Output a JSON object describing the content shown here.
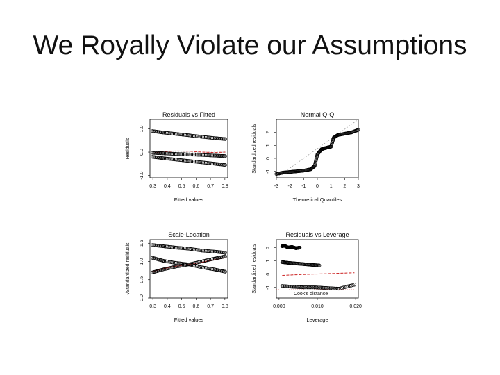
{
  "slide": {
    "title": "We Royally Violate our Assumptions"
  },
  "chart_data": [
    {
      "type": "scatter",
      "title": "Residuals vs Fitted",
      "xlabel": "Fitted values",
      "ylabel": "Residuals",
      "xlim": [
        0.2,
        0.8
      ],
      "ylim": [
        -1.1,
        1.4
      ],
      "xticks": [
        "0.3",
        "0.4",
        "0.5",
        "0.6",
        "0.7",
        "0.8"
      ],
      "yticks": [
        "-1.0",
        "0.0",
        "1.0"
      ],
      "series": [
        {
          "x": [
            0.22,
            0.3,
            0.4,
            0.5,
            0.6,
            0.7,
            0.78
          ],
          "y": [
            0.9,
            0.84,
            0.78,
            0.72,
            0.66,
            0.6,
            0.56
          ]
        },
        {
          "x": [
            0.22,
            0.3,
            0.4,
            0.5,
            0.6,
            0.7,
            0.78
          ],
          "y": [
            -0.2,
            -0.26,
            -0.32,
            -0.38,
            -0.44,
            -0.5,
            -0.55
          ]
        },
        {
          "x": [
            0.22,
            0.3,
            0.4,
            0.5,
            0.6,
            0.7,
            0.78
          ],
          "y": [
            -0.03,
            -0.05,
            -0.08,
            -0.1,
            -0.12,
            -0.15,
            -0.17
          ]
        }
      ],
      "smooth": {
        "x": [
          0.22,
          0.3,
          0.4,
          0.5,
          0.6,
          0.7,
          0.78
        ],
        "y": [
          -0.05,
          0.02,
          0.05,
          0.04,
          0.0,
          -0.02,
          0.0
        ]
      },
      "reference_line": 0,
      "colors": {
        "points": "#000000",
        "smooth": "#cc2222",
        "reference": "#999999"
      }
    },
    {
      "type": "scatter",
      "title": "Normal Q-Q",
      "xlabel": "Theoretical Quantiles",
      "ylabel": "Standardized residuals",
      "xlim": [
        -3,
        3
      ],
      "ylim": [
        -1.5,
        3
      ],
      "xticks": [
        "-3",
        "-2",
        "-1",
        "0",
        "1",
        "2",
        "3"
      ],
      "yticks": [
        "-1",
        "0",
        "1",
        "2"
      ],
      "series": [
        {
          "x": [
            -3,
            -2.5,
            -2,
            -1.5,
            -1,
            -0.5,
            -0.2,
            0,
            0.3,
            0.6,
            1,
            1.2,
            1.5,
            2,
            2.5,
            3
          ],
          "y": [
            -1.2,
            -1.1,
            -1.05,
            -1.0,
            -0.95,
            -0.85,
            -0.6,
            0.3,
            0.7,
            0.8,
            0.9,
            1.6,
            1.8,
            1.9,
            2.0,
            2.2
          ]
        }
      ],
      "reference_line": {
        "x": [
          -3,
          3
        ],
        "y": [
          -1.5,
          3
        ]
      },
      "colors": {
        "points": "#000000",
        "reference": "#888888"
      }
    },
    {
      "type": "scatter",
      "title": "Scale-Location",
      "xlabel": "Fitted values",
      "ylabel": "√Standardized residuals",
      "xlim": [
        0.2,
        0.8
      ],
      "ylim": [
        0.0,
        1.6
      ],
      "xticks": [
        "0.3",
        "0.4",
        "0.5",
        "0.6",
        "0.7",
        "0.8"
      ],
      "yticks": [
        "0.0",
        "0.5",
        "1.0",
        "1.5"
      ],
      "series": [
        {
          "x": [
            0.22,
            0.3,
            0.4,
            0.5,
            0.6,
            0.7,
            0.78
          ],
          "y": [
            1.45,
            1.42,
            1.38,
            1.35,
            1.3,
            1.27,
            1.24
          ]
        },
        {
          "x": [
            0.22,
            0.3,
            0.4,
            0.5,
            0.6,
            0.7,
            0.78
          ],
          "y": [
            0.7,
            0.78,
            0.86,
            0.92,
            1.0,
            1.08,
            1.14
          ]
        },
        {
          "x": [
            0.22,
            0.3,
            0.4,
            0.5,
            0.6,
            0.7,
            0.78
          ],
          "y": [
            1.1,
            1.02,
            0.96,
            0.92,
            0.84,
            0.78,
            0.72
          ]
        }
      ],
      "smooth": {
        "x": [
          0.22,
          0.3,
          0.4,
          0.5,
          0.6,
          0.7,
          0.78
        ],
        "y": [
          0.72,
          0.8,
          0.87,
          0.92,
          0.98,
          1.05,
          1.1
        ]
      },
      "colors": {
        "points": "#000000",
        "smooth": "#cc2222"
      }
    },
    {
      "type": "scatter",
      "title": "Residuals vs Leverage",
      "xlabel": "Leverage",
      "ylabel": "Standardized residuals",
      "xlim": [
        0.0,
        0.021
      ],
      "ylim": [
        -1.8,
        2.6
      ],
      "xticks": [
        "0.000",
        "0.010",
        "0.020"
      ],
      "yticks": [
        "-1",
        "0",
        "1",
        "2"
      ],
      "annotations": [
        "Cook's distance"
      ],
      "series": [
        {
          "x": [
            0.0015,
            0.002,
            0.003,
            0.004,
            0.005,
            0.006
          ],
          "y": [
            2.1,
            2.15,
            2.0,
            2.05,
            1.95,
            2.0
          ]
        },
        {
          "x": [
            0.0015,
            0.003,
            0.005,
            0.007,
            0.009,
            0.011
          ],
          "y": [
            0.9,
            0.85,
            0.8,
            0.75,
            0.7,
            0.65
          ]
        },
        {
          "x": [
            0.0015,
            0.004,
            0.007,
            0.01,
            0.013,
            0.016,
            0.02
          ],
          "y": [
            -0.9,
            -0.95,
            -1.0,
            -1.0,
            -1.05,
            -1.1,
            -0.8
          ]
        }
      ],
      "smooth": {
        "x": [
          0.0015,
          0.005,
          0.01,
          0.015,
          0.02
        ],
        "y": [
          -0.1,
          -0.05,
          0.0,
          0.05,
          0.1
        ]
      },
      "reference_line": 0,
      "colors": {
        "points": "#000000",
        "smooth": "#cc2222",
        "reference": "#999999"
      }
    }
  ]
}
